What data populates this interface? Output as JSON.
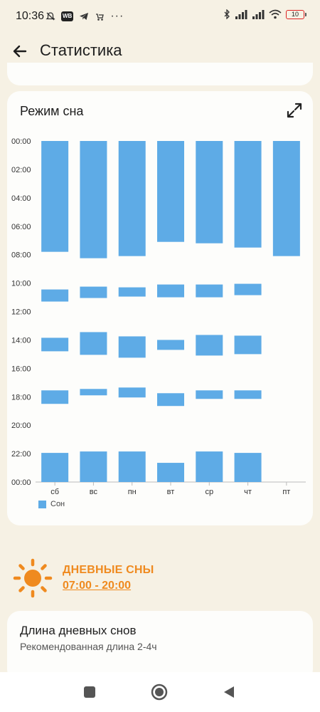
{
  "status_bar": {
    "time": "10:36",
    "battery": "10",
    "left_icons": [
      "mute-icon",
      "wb-badge",
      "telegram-icon",
      "stroller-icon",
      "more-dots"
    ],
    "right_icons": [
      "bluetooth-icon",
      "signal-icon",
      "signal-icon",
      "wifi-icon",
      "battery-icon"
    ],
    "wb_label": "WB",
    "dots": "···"
  },
  "app_bar": {
    "title": "Статистика"
  },
  "sleep_card": {
    "title": "Режим сна",
    "legend_label": "Сон",
    "accent_color": "#5eabe6"
  },
  "chart_data": {
    "type": "bar",
    "title": "Режим сна",
    "categories": [
      "сб",
      "вс",
      "пн",
      "вт",
      "ср",
      "чт",
      "пт"
    ],
    "y_ticks": [
      "00:00",
      "02:00",
      "04:00",
      "06:00",
      "08:00",
      "10:00",
      "12:00",
      "14:00",
      "16:00",
      "18:00",
      "20:00",
      "22:00",
      "00:00"
    ],
    "y_range_hours": [
      0,
      24
    ],
    "y_inverted": true,
    "series": [
      {
        "name": "Сон",
        "color": "#5eabe6",
        "intervals_hours": [
          [
            [
              0.0,
              7.8
            ],
            [
              10.45,
              11.3
            ],
            [
              13.85,
              14.8
            ],
            [
              17.55,
              18.5
            ],
            [
              21.95,
              24.0
            ]
          ],
          [
            [
              0.0,
              8.25
            ],
            [
              10.25,
              11.05
            ],
            [
              13.45,
              15.05
            ],
            [
              17.45,
              17.9
            ],
            [
              21.85,
              24.0
            ]
          ],
          [
            [
              0.0,
              8.1
            ],
            [
              10.3,
              10.95
            ],
            [
              13.75,
              15.25
            ],
            [
              17.35,
              18.05
            ],
            [
              21.85,
              24.0
            ]
          ],
          [
            [
              0.0,
              7.1
            ],
            [
              10.1,
              11.0
            ],
            [
              14.0,
              14.7
            ],
            [
              17.75,
              18.65
            ],
            [
              22.65,
              24.0
            ]
          ],
          [
            [
              0.0,
              7.2
            ],
            [
              10.1,
              11.0
            ],
            [
              13.65,
              15.1
            ],
            [
              17.55,
              18.15
            ],
            [
              21.85,
              24.0
            ]
          ],
          [
            [
              0.0,
              7.5
            ],
            [
              10.05,
              10.85
            ],
            [
              13.7,
              15.0
            ],
            [
              17.55,
              18.15
            ],
            [
              21.95,
              24.0
            ]
          ],
          [
            [
              0.0,
              8.1
            ]
          ]
        ]
      }
    ],
    "legend": "bottom-left",
    "grid": false
  },
  "daytime_naps": {
    "heading": "ДНЕВНЫЕ СНЫ",
    "range": "07:00 - 20:00",
    "color": "#ef8a1f"
  },
  "nap_length_card": {
    "title": "Длина дневных снов",
    "subtitle": "Рекомендованная длина 2-4ч"
  },
  "nav_bar": {
    "buttons": [
      "recents-button",
      "home-button",
      "back-button"
    ]
  }
}
